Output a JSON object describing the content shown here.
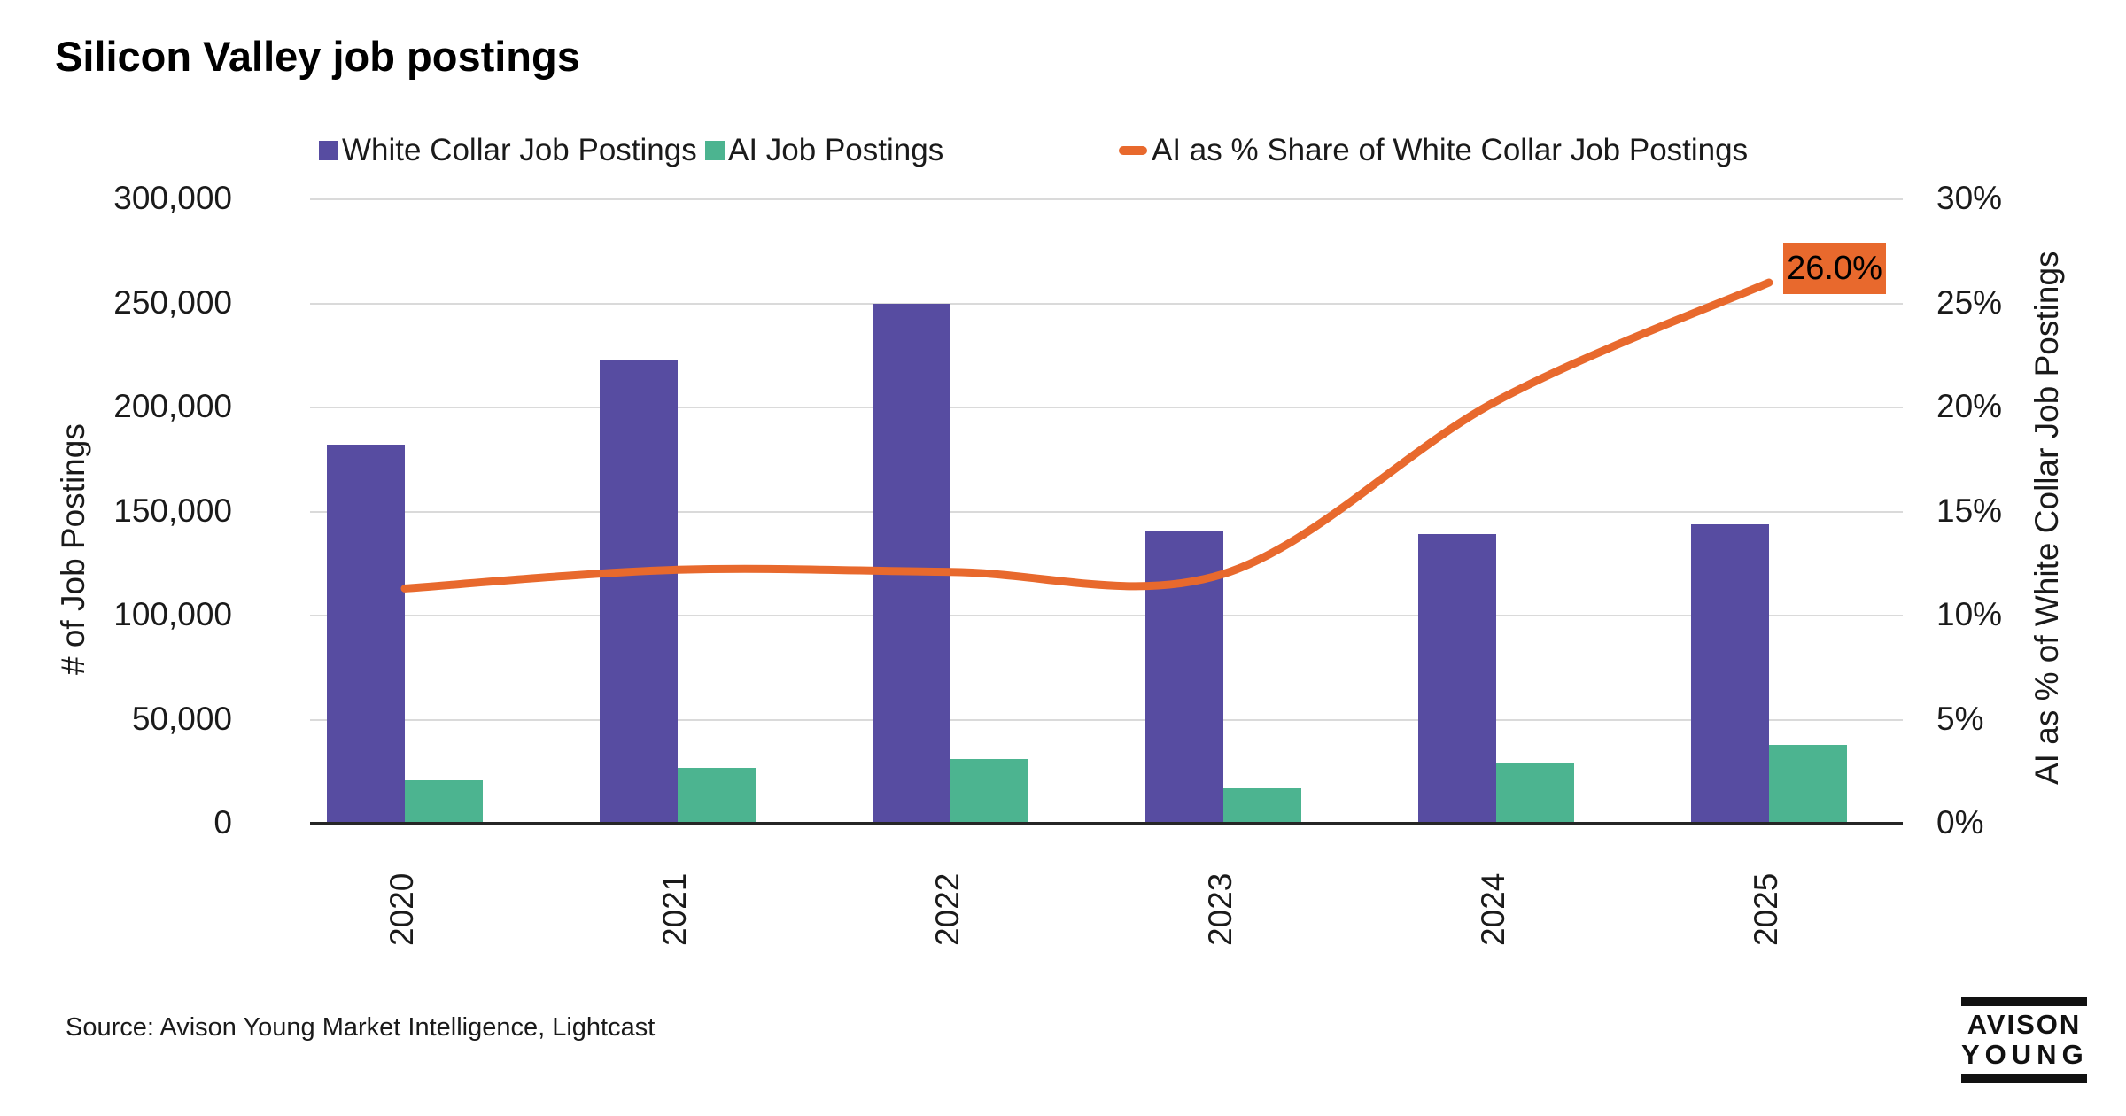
{
  "title": "Silicon Valley job postings",
  "legend": [
    {
      "label": "White Collar Job Postings",
      "swatch": "square",
      "color": "#574CA1"
    },
    {
      "label": "AI Job Postings",
      "swatch": "square",
      "color": "#4CB490"
    },
    {
      "label": "AI as % Share of White Collar Job Postings",
      "swatch": "dash",
      "color": "#E8692D"
    }
  ],
  "chart_data": {
    "type": "bar",
    "categories": [
      "2020",
      "2021",
      "2022",
      "2023",
      "2024",
      "2025"
    ],
    "series": [
      {
        "name": "White Collar Job Postings",
        "type": "bar",
        "axis": "left",
        "color": "#574CA1",
        "values": [
          182000,
          223000,
          250000,
          141000,
          139000,
          144000
        ]
      },
      {
        "name": "AI Job Postings",
        "type": "bar",
        "axis": "left",
        "color": "#4CB490",
        "values": [
          21000,
          27000,
          31000,
          17000,
          29000,
          38000
        ]
      },
      {
        "name": "AI as % Share of White Collar Job Postings",
        "type": "line",
        "axis": "right",
        "color": "#E8692D",
        "values": [
          11.3,
          12.2,
          12.1,
          12.0,
          20.3,
          26.0
        ]
      }
    ],
    "left_axis": {
      "title": "# of Job Postings",
      "min": 0,
      "max": 300000,
      "ticks": [
        "300,000",
        "250,000",
        "200,000",
        "150,000",
        "100,000",
        "50,000",
        "0"
      ]
    },
    "right_axis": {
      "title": "AI as % of White Collar Job Postings",
      "min": 0,
      "max": 30,
      "ticks": [
        "30%",
        "25%",
        "20%",
        "15%",
        "10%",
        "5%",
        "0%"
      ]
    },
    "annotation": {
      "label": "26.0%",
      "color": "#E8692D"
    },
    "grid": true,
    "legend_position": "top"
  },
  "source": "Source: Avison Young Market Intelligence, Lightcast",
  "logo": {
    "line1": "AVISON",
    "line2": "YOUNG"
  },
  "colors": {
    "white_collar_bar": "#574CA1",
    "ai_bar": "#4CB490",
    "share_line": "#E8692D",
    "gridline": "#dadada",
    "axis": "#262626",
    "text": "#1a1a1a"
  }
}
